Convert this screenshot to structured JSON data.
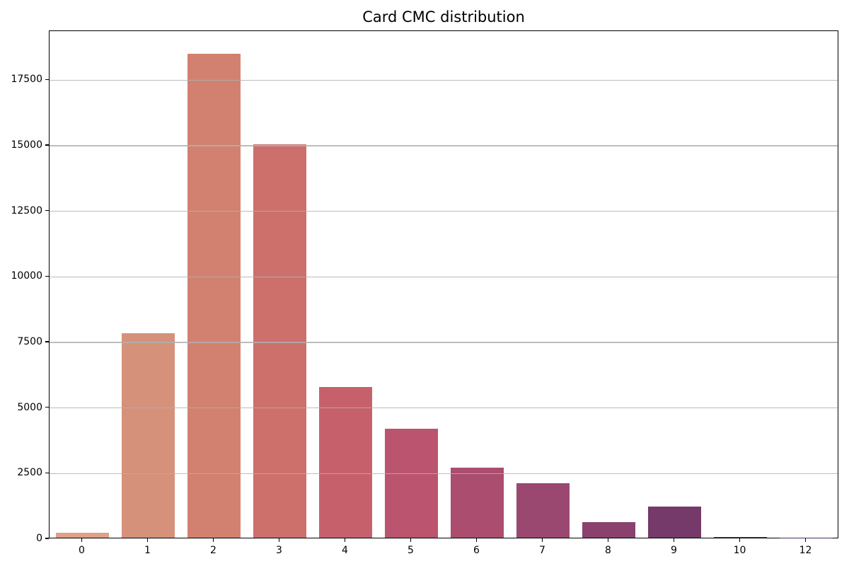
{
  "chart_data": {
    "type": "bar",
    "title": "Card CMC distribution",
    "xlabel": "",
    "ylabel": "",
    "categories": [
      "0",
      "1",
      "2",
      "3",
      "4",
      "5",
      "6",
      "7",
      "8",
      "9",
      "10",
      "12"
    ],
    "values": [
      190,
      7800,
      18450,
      15000,
      5750,
      4150,
      2670,
      2080,
      590,
      1190,
      20,
      10
    ],
    "bar_colors": [
      "#dfa087",
      "#d6917a",
      "#d28170",
      "#cd6f6b",
      "#c6616c",
      "#bb546e",
      "#ab4d6f",
      "#9a486f",
      "#8a416e",
      "#753a69",
      "#623367",
      "#4c2e60"
    ],
    "ylim": [
      0,
      19370
    ],
    "yticks": [
      0,
      2500,
      5000,
      7500,
      10000,
      12500,
      15000,
      17500
    ],
    "grid": "horizontal",
    "grid_color": "#b0b0b0",
    "legend": "none",
    "background": "#ffffff",
    "bar_width_fraction": 0.8
  }
}
